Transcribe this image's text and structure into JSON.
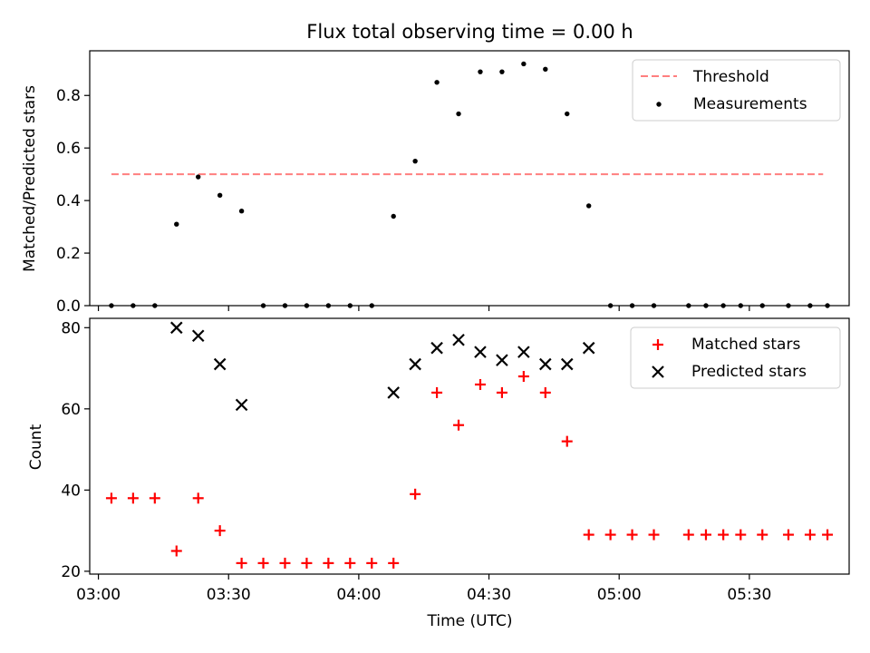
{
  "chart_data": {
    "title": "Flux total observing time = 0.00 h",
    "xlabel": "Time (UTC)",
    "x_unit": "UTC time",
    "xlim": [
      "02:58",
      "05:53"
    ],
    "xticks": [
      "03:00",
      "03:30",
      "04:00",
      "04:30",
      "05:00",
      "05:30"
    ],
    "panels": [
      {
        "type": "scatter",
        "ylabel": "Matched/Predicted stars",
        "ylim": [
          0,
          0.97
        ],
        "yticks": [
          "0.0",
          "0.2",
          "0.4",
          "0.6",
          "0.8"
        ],
        "legend": {
          "location": "upper right",
          "entries": [
            "Threshold",
            "Measurements"
          ]
        },
        "series": [
          {
            "name": "Threshold",
            "kind": "dashed-line",
            "color": "#ff7f7f",
            "points": [
              {
                "x": "03:03",
                "y": 0.5
              },
              {
                "x": "05:47",
                "y": 0.5
              }
            ]
          },
          {
            "name": "Measurements",
            "kind": "dot",
            "color": "#000000",
            "points": [
              {
                "x": "03:03",
                "y": 0.0
              },
              {
                "x": "03:08",
                "y": 0.0
              },
              {
                "x": "03:13",
                "y": 0.0
              },
              {
                "x": "03:18",
                "y": 0.31
              },
              {
                "x": "03:23",
                "y": 0.49
              },
              {
                "x": "03:28",
                "y": 0.42
              },
              {
                "x": "03:33",
                "y": 0.36
              },
              {
                "x": "03:38",
                "y": 0.0
              },
              {
                "x": "03:43",
                "y": 0.0
              },
              {
                "x": "03:48",
                "y": 0.0
              },
              {
                "x": "03:53",
                "y": 0.0
              },
              {
                "x": "03:58",
                "y": 0.0
              },
              {
                "x": "04:03",
                "y": 0.0
              },
              {
                "x": "04:08",
                "y": 0.34
              },
              {
                "x": "04:13",
                "y": 0.55
              },
              {
                "x": "04:18",
                "y": 0.85
              },
              {
                "x": "04:23",
                "y": 0.73
              },
              {
                "x": "04:28",
                "y": 0.89
              },
              {
                "x": "04:33",
                "y": 0.89
              },
              {
                "x": "04:38",
                "y": 0.92
              },
              {
                "x": "04:43",
                "y": 0.9
              },
              {
                "x": "04:48",
                "y": 0.73
              },
              {
                "x": "04:53",
                "y": 0.38
              },
              {
                "x": "04:58",
                "y": 0.0
              },
              {
                "x": "05:03",
                "y": 0.0
              },
              {
                "x": "05:08",
                "y": 0.0
              },
              {
                "x": "05:16",
                "y": 0.0
              },
              {
                "x": "05:20",
                "y": 0.0
              },
              {
                "x": "05:24",
                "y": 0.0
              },
              {
                "x": "05:28",
                "y": 0.0
              },
              {
                "x": "05:33",
                "y": 0.0
              },
              {
                "x": "05:39",
                "y": 0.0
              },
              {
                "x": "05:44",
                "y": 0.0
              },
              {
                "x": "05:48",
                "y": 0.0
              }
            ]
          }
        ]
      },
      {
        "type": "scatter",
        "ylabel": "Count",
        "ylim": [
          19.3,
          82.3
        ],
        "yticks": [
          "20",
          "40",
          "60",
          "80"
        ],
        "legend": {
          "location": "upper right",
          "entries": [
            "Matched stars",
            "Predicted stars"
          ]
        },
        "series": [
          {
            "name": "Matched stars",
            "kind": "plus",
            "color": "#ff0000",
            "points": [
              {
                "x": "03:03",
                "y": 38
              },
              {
                "x": "03:08",
                "y": 38
              },
              {
                "x": "03:13",
                "y": 38
              },
              {
                "x": "03:18",
                "y": 25
              },
              {
                "x": "03:23",
                "y": 38
              },
              {
                "x": "03:28",
                "y": 30
              },
              {
                "x": "03:33",
                "y": 22
              },
              {
                "x": "03:38",
                "y": 22
              },
              {
                "x": "03:43",
                "y": 22
              },
              {
                "x": "03:48",
                "y": 22
              },
              {
                "x": "03:53",
                "y": 22
              },
              {
                "x": "03:58",
                "y": 22
              },
              {
                "x": "04:03",
                "y": 22
              },
              {
                "x": "04:08",
                "y": 22
              },
              {
                "x": "04:13",
                "y": 39
              },
              {
                "x": "04:18",
                "y": 64
              },
              {
                "x": "04:23",
                "y": 56
              },
              {
                "x": "04:28",
                "y": 66
              },
              {
                "x": "04:33",
                "y": 64
              },
              {
                "x": "04:38",
                "y": 68
              },
              {
                "x": "04:43",
                "y": 64
              },
              {
                "x": "04:48",
                "y": 52
              },
              {
                "x": "04:53",
                "y": 29
              },
              {
                "x": "04:58",
                "y": 29
              },
              {
                "x": "05:03",
                "y": 29
              },
              {
                "x": "05:08",
                "y": 29
              },
              {
                "x": "05:16",
                "y": 29
              },
              {
                "x": "05:20",
                "y": 29
              },
              {
                "x": "05:24",
                "y": 29
              },
              {
                "x": "05:28",
                "y": 29
              },
              {
                "x": "05:33",
                "y": 29
              },
              {
                "x": "05:39",
                "y": 29
              },
              {
                "x": "05:44",
                "y": 29
              },
              {
                "x": "05:48",
                "y": 29
              }
            ]
          },
          {
            "name": "Predicted stars",
            "kind": "cross",
            "color": "#000000",
            "points": [
              {
                "x": "03:18",
                "y": 80
              },
              {
                "x": "03:23",
                "y": 78
              },
              {
                "x": "03:28",
                "y": 71
              },
              {
                "x": "03:33",
                "y": 61
              },
              {
                "x": "04:08",
                "y": 64
              },
              {
                "x": "04:13",
                "y": 71
              },
              {
                "x": "04:18",
                "y": 75
              },
              {
                "x": "04:23",
                "y": 77
              },
              {
                "x": "04:28",
                "y": 74
              },
              {
                "x": "04:33",
                "y": 72
              },
              {
                "x": "04:38",
                "y": 74
              },
              {
                "x": "04:43",
                "y": 71
              },
              {
                "x": "04:48",
                "y": 71
              },
              {
                "x": "04:53",
                "y": 75
              }
            ]
          }
        ]
      }
    ]
  }
}
